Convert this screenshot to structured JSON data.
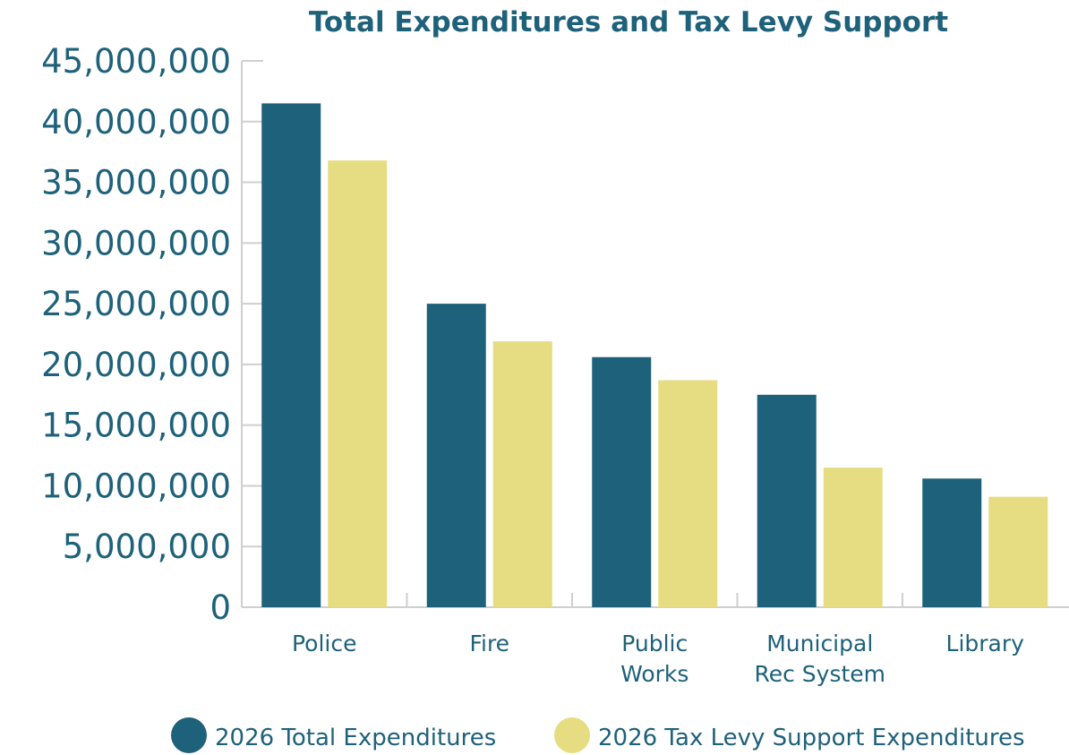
{
  "chart_data": {
    "type": "bar",
    "title": "Total Expenditures and Tax Levy Support",
    "xlabel": "",
    "ylabel": "",
    "categories": [
      [
        "Police"
      ],
      [
        "Fire"
      ],
      [
        "Public",
        "Works"
      ],
      [
        "Municipal",
        "Rec System"
      ],
      [
        "Library"
      ]
    ],
    "series": [
      {
        "name": "2026 Total Expenditures",
        "color": "#1e617a",
        "values": [
          41500000,
          25000000,
          20600000,
          17500000,
          10600000
        ]
      },
      {
        "name": "2026 Tax Levy Support Expenditures",
        "color": "#e6dd83",
        "values": [
          36800000,
          21900000,
          18700000,
          11500000,
          9100000
        ]
      }
    ],
    "ylim": [
      0,
      45000000
    ],
    "yticks": [
      0,
      5000000,
      10000000,
      15000000,
      20000000,
      25000000,
      30000000,
      35000000,
      40000000,
      45000000
    ],
    "ytick_labels": [
      "0",
      "5,000,000",
      "10,000,000",
      "15,000,000",
      "20,000,000",
      "25,000,000",
      "30,000,000",
      "35,000,000",
      "40,000,000",
      "45,000,000"
    ],
    "grid": false,
    "legend_position": "bottom"
  }
}
